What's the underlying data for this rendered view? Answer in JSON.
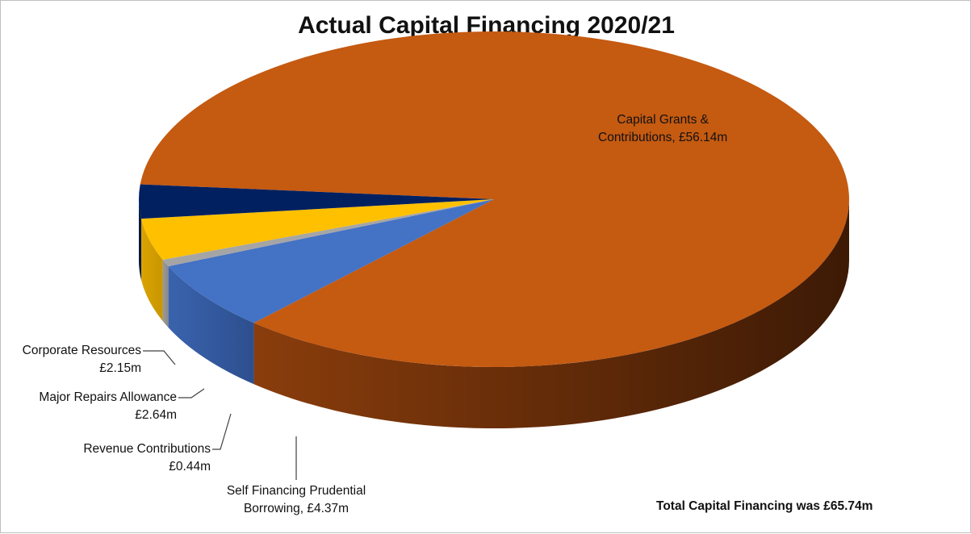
{
  "chart_data": {
    "type": "pie",
    "title": "Actual Capital Financing 2020/21",
    "unit": "£m",
    "slices": [
      {
        "name": "Capital Grants & Contributions",
        "value": 56.14,
        "color": "#c55a11",
        "label_line1": "Capital Grants &",
        "label_line2": "Contributions, £56.14m"
      },
      {
        "name": "Self Financing Prudential Borrowing",
        "value": 4.37,
        "color": "#4472c4",
        "label_line1": "Self Financing Prudential",
        "label_line2": "Borrowing, £4.37m"
      },
      {
        "name": "Revenue Contributions",
        "value": 0.44,
        "color": "#a5a5a5",
        "label_line1": "Revenue Contributions",
        "label_line2": "£0.44m"
      },
      {
        "name": "Major Repairs Allowance",
        "value": 2.64,
        "color": "#ffc000",
        "label_line1": "Major Repairs Allowance",
        "label_line2": "£2.64m"
      },
      {
        "name": "Corporate Resources",
        "value": 2.15,
        "color": "#002060",
        "label_line1": "Corporate Resources",
        "label_line2": "£2.15m"
      }
    ],
    "footnote": "Total Capital Financing was £65.74m"
  }
}
